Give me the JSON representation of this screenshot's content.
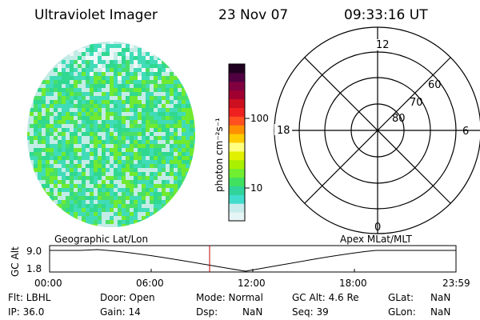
{
  "header": {
    "instrument": "Ultraviolet Imager",
    "date": "23 Nov 07",
    "time": "09:33:16 UT"
  },
  "colorbar": {
    "unit_label": "photon cm⁻²s⁻¹",
    "ticks": [
      "100",
      "10"
    ],
    "colors": [
      "#e6f5f5",
      "#c8ecec",
      "#40dccc",
      "#30d49a",
      "#40e060",
      "#70ee30",
      "#a8f000",
      "#e0f000",
      "#ffff80",
      "#ffcc00",
      "#ff9000",
      "#ff5020",
      "#ee2020",
      "#cc1020",
      "#a00030",
      "#800040",
      "#500040",
      "#200020"
    ]
  },
  "polar_plot": {
    "mlt_labels": [
      "12",
      "18",
      "6",
      "0"
    ],
    "mlat_labels": [
      "60",
      "70",
      "80"
    ]
  },
  "timeline": {
    "left_title": "Geographic Lat/Lon",
    "right_title": "Apex MLat/MLT",
    "axis_label": "GC Alt",
    "alt_ticks": [
      "9.0",
      "1.8"
    ],
    "time_ticks": [
      "00:00",
      "06:00",
      "12:00",
      "18:00",
      "23:59"
    ],
    "marker_color": "#c00000"
  },
  "status": {
    "flt": "Flt: LBHL",
    "door": "Door: Open",
    "mode": "Mode: Normal",
    "gc_alt": "GC Alt: 4.6 Re",
    "glat_label": "GLat:",
    "glat_value": "NaN",
    "ip": "IP: 36.0",
    "gain": "Gain: 14",
    "dsp_label": "Dsp:",
    "dsp_value": "NaN",
    "seq": "Seq: 39",
    "glon_label": "GLon:",
    "glon_value": "NaN"
  }
}
